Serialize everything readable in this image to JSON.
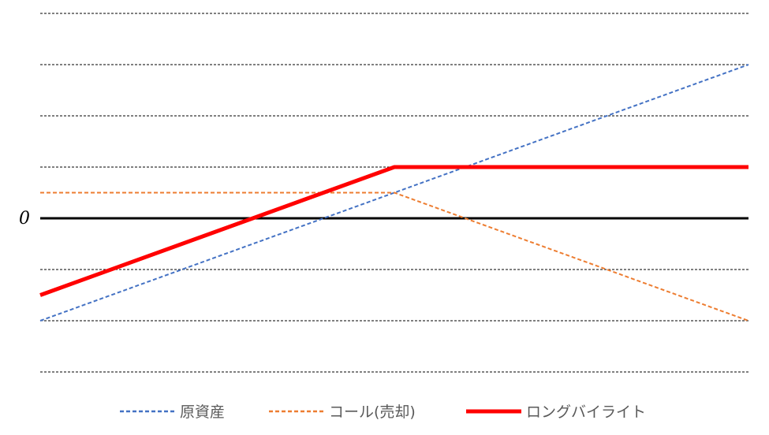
{
  "chart_data": {
    "type": "line",
    "title": "",
    "xlabel": "",
    "ylabel": "",
    "xlim": [
      0,
      10
    ],
    "ylim": [
      -3,
      4
    ],
    "gridlines_y": [
      -3,
      -2,
      -1,
      1,
      2,
      3,
      4
    ],
    "zero_line": 0,
    "zero_label": "0",
    "legend_position": "bottom",
    "series": [
      {
        "name": "原資産",
        "color": "#4472C4",
        "style": "dashed",
        "x": [
          0,
          10
        ],
        "y": [
          -2,
          3
        ]
      },
      {
        "name": "コール(売却)",
        "color": "#ED7D31",
        "style": "dashed",
        "x": [
          0,
          5,
          10
        ],
        "y": [
          0.5,
          0.5,
          -2
        ]
      },
      {
        "name": "ロングバイライト",
        "color": "#FF0000",
        "style": "solid",
        "x": [
          0,
          5,
          10
        ],
        "y": [
          -1.5,
          1,
          1
        ]
      }
    ]
  }
}
